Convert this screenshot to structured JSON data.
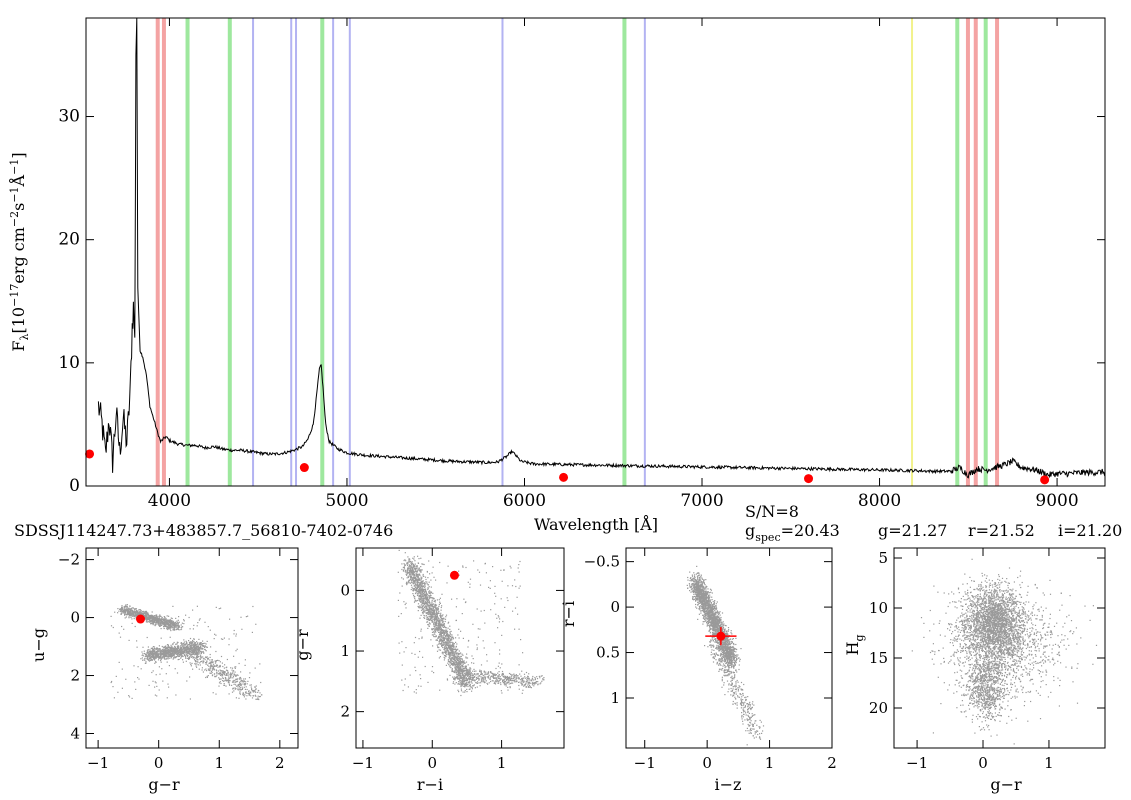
{
  "spectrum_header": {
    "object_id": "SDSSJ114247.73+483857.7_56810-7402-0746",
    "sn": "S/N=8",
    "gspec_base": "g",
    "gspec_sub": "spec",
    "gspec_value": "=20.43",
    "g": "g=21.27",
    "r": "r=21.52",
    "i": "i=21.20"
  },
  "chart_data": [
    {
      "type": "line",
      "panel": "spectrum",
      "xlabel": "Wavelength [Å]",
      "ylabel": "Fλ[10−17erg cm−2s−1Å−1]",
      "ylabel_parts": {
        "F": "F",
        "lam": "λ",
        "a": "[10",
        "e1": "−17",
        "b": "erg cm",
        "e2": "−2",
        "c": "s",
        "e3": "−1",
        "d": "Å",
        "e4": "−1",
        "e": "]"
      },
      "xlim": [
        3530,
        9270
      ],
      "ylim": [
        0,
        38
      ],
      "x_ticks": [
        4000,
        5000,
        6000,
        7000,
        8000,
        9000
      ],
      "y_ticks": [
        0,
        10,
        20,
        30
      ],
      "series": [
        {
          "points": [
            [
              3600,
              6.5
            ],
            [
              3620,
              5.0
            ],
            [
              3640,
              2.5
            ],
            [
              3660,
              5.5
            ],
            [
              3680,
              2.0
            ],
            [
              3700,
              6.0
            ],
            [
              3720,
              2.8
            ],
            [
              3740,
              5.5
            ],
            [
              3760,
              3.5
            ],
            [
              3780,
              8.0
            ],
            [
              3790,
              13.0
            ],
            [
              3797,
              14.5
            ],
            [
              3805,
              12.0
            ],
            [
              3811,
              35.0
            ],
            [
              3816,
              38.0
            ],
            [
              3822,
              16.0
            ],
            [
              3835,
              11.0
            ],
            [
              3850,
              10.5
            ],
            [
              3870,
              9.0
            ],
            [
              3890,
              6.5
            ],
            [
              3910,
              5.5
            ],
            [
              3930,
              4.5
            ],
            [
              3950,
              3.6
            ],
            [
              3980,
              4.0
            ],
            [
              4000,
              3.7
            ],
            [
              4050,
              3.4
            ],
            [
              4100,
              3.3
            ],
            [
              4150,
              3.3
            ],
            [
              4200,
              3.1
            ],
            [
              4250,
              3.2
            ],
            [
              4300,
              3.0
            ],
            [
              4350,
              2.9
            ],
            [
              4400,
              2.9
            ],
            [
              4450,
              2.8
            ],
            [
              4500,
              2.7
            ],
            [
              4550,
              2.6
            ],
            [
              4600,
              2.6
            ],
            [
              4650,
              2.7
            ],
            [
              4700,
              2.9
            ],
            [
              4750,
              3.2
            ],
            [
              4780,
              3.8
            ],
            [
              4810,
              5.0
            ],
            [
              4830,
              7.5
            ],
            [
              4845,
              9.5
            ],
            [
              4855,
              9.8
            ],
            [
              4865,
              8.0
            ],
            [
              4880,
              5.0
            ],
            [
              4900,
              3.6
            ],
            [
              4950,
              3.0
            ],
            [
              5000,
              2.7
            ],
            [
              5100,
              2.5
            ],
            [
              5200,
              2.4
            ],
            [
              5300,
              2.3
            ],
            [
              5400,
              2.2
            ],
            [
              5500,
              2.1
            ],
            [
              5600,
              2.0
            ],
            [
              5700,
              1.95
            ],
            [
              5800,
              1.9
            ],
            [
              5850,
              1.95
            ],
            [
              5900,
              2.4
            ],
            [
              5930,
              2.8
            ],
            [
              5950,
              2.5
            ],
            [
              5980,
              2.0
            ],
            [
              6050,
              1.8
            ],
            [
              6200,
              1.75
            ],
            [
              6400,
              1.7
            ],
            [
              6600,
              1.65
            ],
            [
              6800,
              1.6
            ],
            [
              7000,
              1.55
            ],
            [
              7200,
              1.5
            ],
            [
              7400,
              1.45
            ],
            [
              7600,
              1.4
            ],
            [
              7800,
              1.35
            ],
            [
              8000,
              1.3
            ],
            [
              8200,
              1.25
            ],
            [
              8300,
              1.2
            ],
            [
              8400,
              1.2
            ],
            [
              8450,
              1.5
            ],
            [
              8500,
              0.9
            ],
            [
              8550,
              1.4
            ],
            [
              8600,
              1.3
            ],
            [
              8650,
              1.5
            ],
            [
              8700,
              1.7
            ],
            [
              8750,
              2.0
            ],
            [
              8800,
              1.5
            ],
            [
              8850,
              1.4
            ],
            [
              8900,
              1.2
            ],
            [
              8950,
              0.9
            ],
            [
              9000,
              1.0
            ],
            [
              9050,
              1.0
            ],
            [
              9100,
              1.05
            ],
            [
              9150,
              1.1
            ],
            [
              9200,
              1.1
            ],
            [
              9270,
              1.15
            ]
          ]
        }
      ],
      "photometry_points": [
        [
          3550,
          2.6
        ],
        [
          4760,
          1.5
        ],
        [
          6220,
          0.7
        ],
        [
          7600,
          0.6
        ],
        [
          8930,
          0.5
        ]
      ],
      "line_markers": {
        "red": [
          3934,
          3969,
          8498,
          8542,
          8662
        ],
        "green": [
          4102,
          4340,
          4861,
          6563,
          8438,
          8598
        ],
        "blue": [
          4471,
          4686,
          4713,
          4922,
          5016,
          5876,
          6678
        ],
        "yellow": [
          8183
        ]
      },
      "colors": {
        "spectrum": "#000000",
        "points": "#ff0000",
        "red_lines": "#f4a3a3",
        "green_lines": "#9ee89e",
        "blue_lines": "#b3b3f2",
        "yellow_lines": "#f2f28c",
        "cloud": "#9a9a9a"
      }
    },
    {
      "type": "scatter",
      "panel": "color-color-1",
      "xlabel": "g−r",
      "ylabel": "u−g",
      "xlim": [
        -1.2,
        2.3
      ],
      "ylim": [
        4.5,
        -2.4
      ],
      "x_ticks": [
        -1,
        0,
        1,
        2
      ],
      "y_ticks": [
        -2,
        0,
        2,
        4
      ],
      "y_tick_labels": [
        "−2",
        "0",
        "2",
        "4"
      ],
      "x_tick_labels": [
        "−1",
        "0",
        "1",
        "2"
      ],
      "target": [
        -0.3,
        0.05
      ],
      "target_error": [
        0.0,
        0.0
      ]
    },
    {
      "type": "scatter",
      "panel": "color-color-2",
      "xlabel": "r−i",
      "ylabel": "g−r",
      "xlim": [
        -1.1,
        1.9
      ],
      "ylim": [
        2.6,
        -0.7
      ],
      "x_ticks": [
        -1,
        0,
        1
      ],
      "y_ticks": [
        0,
        1,
        2
      ],
      "x_tick_labels": [
        "−1",
        "0",
        "1"
      ],
      "y_tick_labels": [
        "0",
        "1",
        "2"
      ],
      "target": [
        0.32,
        -0.25
      ],
      "target_error": [
        0.0,
        0.0
      ]
    },
    {
      "type": "scatter",
      "panel": "color-color-3",
      "xlabel": "i−z",
      "ylabel": "r−i",
      "xlim": [
        -1.3,
        2.0
      ],
      "ylim": [
        1.55,
        -0.65
      ],
      "x_ticks": [
        -1,
        0,
        1,
        2
      ],
      "y_ticks": [
        -0.5,
        0,
        0.5,
        1
      ],
      "x_tick_labels": [
        "−1",
        "0",
        "1",
        "2"
      ],
      "y_tick_labels": [
        "−0.5",
        "0",
        "0.5",
        "1"
      ],
      "target": [
        0.22,
        0.32
      ],
      "target_error": [
        0.25,
        0.1
      ]
    },
    {
      "type": "scatter",
      "panel": "reduced-proper-motion",
      "xlabel": "g−r",
      "ylabel": "Hg",
      "ylabel_parts": {
        "H": "H",
        "sub": "g"
      },
      "xlim": [
        -1.35,
        1.85
      ],
      "ylim": [
        24,
        4
      ],
      "x_ticks": [
        -1,
        0,
        1
      ],
      "y_ticks": [
        5,
        10,
        15,
        20
      ],
      "x_tick_labels": [
        "−1",
        "0",
        "1"
      ],
      "y_tick_labels": [
        "5",
        "10",
        "15",
        "20"
      ]
    }
  ]
}
